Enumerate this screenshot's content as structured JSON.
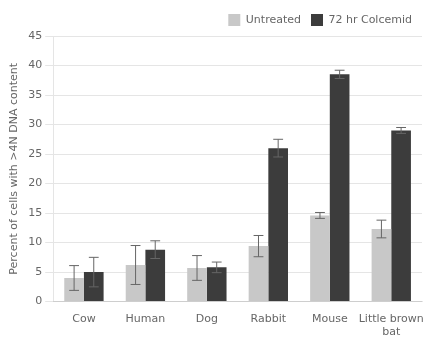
{
  "chart_data": {
    "type": "bar",
    "categories": [
      "Cow",
      "Human",
      "Dog",
      "Rabbit",
      "Mouse",
      "Little brown\nbat"
    ],
    "series": [
      {
        "name": "Untreated",
        "color": "#c8c8c8",
        "values": [
          4.0,
          6.2,
          5.7,
          9.4,
          14.6,
          12.3
        ],
        "errors": [
          2.1,
          3.3,
          2.1,
          1.8,
          0.5,
          1.5
        ]
      },
      {
        "name": "72 hr Colcemid",
        "color": "#3c3c3c",
        "values": [
          5.0,
          8.8,
          5.8,
          26.0,
          38.5,
          29.0
        ],
        "errors": [
          2.5,
          1.5,
          0.9,
          1.5,
          0.7,
          0.5
        ]
      }
    ],
    "ylabel": "Percent of cells with >4N DNA content",
    "ylim": [
      0,
      45
    ],
    "yticks": [
      0,
      5,
      10,
      15,
      20,
      25,
      30,
      35,
      40,
      45
    ],
    "grid": true,
    "legend": "upper right"
  }
}
